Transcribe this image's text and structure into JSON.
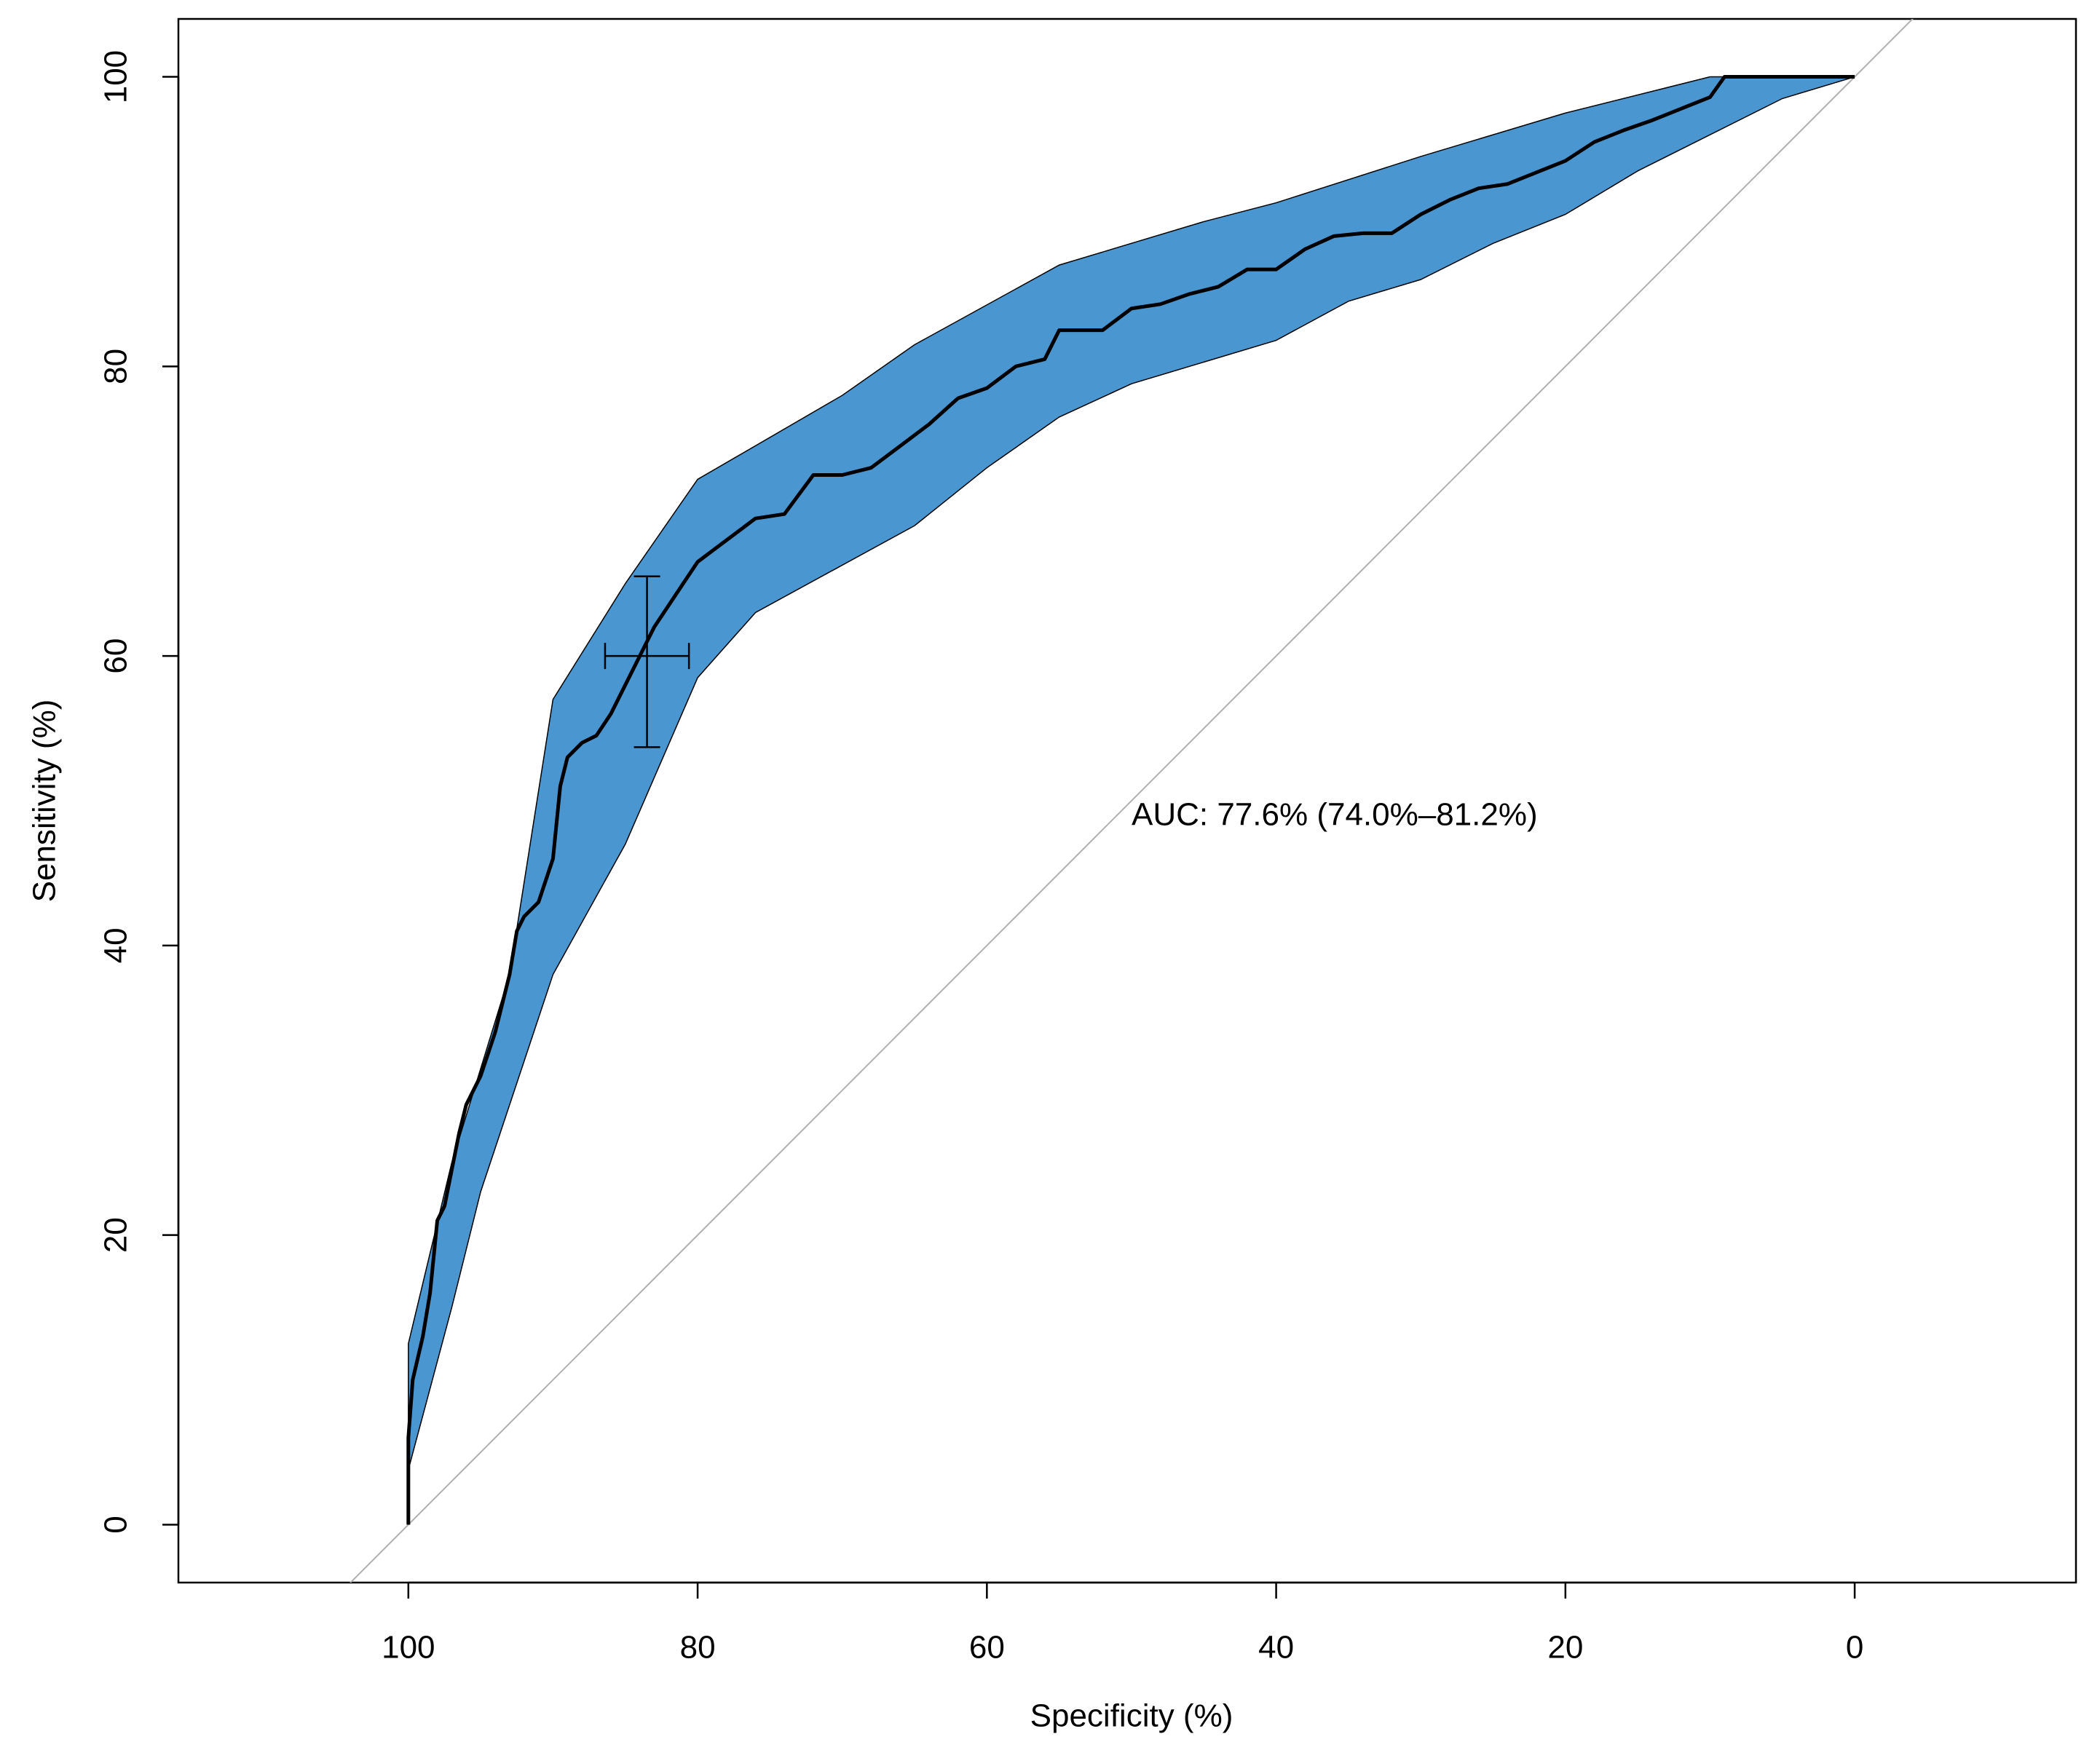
{
  "chart_data": {
    "type": "roc",
    "x_label": "Specificity (%)",
    "y_label": "Sensitivity (%)",
    "annotation": "AUC: 77.6% (74.0%–81.2%)",
    "xlim": [
      115.9,
      -15.3
    ],
    "ylim": [
      -4,
      104
    ],
    "xticks": [
      100,
      80,
      60,
      40,
      20,
      0
    ],
    "yticks": [
      0,
      20,
      40,
      60,
      80,
      100
    ],
    "reference_line": {
      "x": [
        100,
        0
      ],
      "y": [
        0,
        100
      ],
      "color": "#b0b0b0"
    },
    "curve": {
      "color": "#000000",
      "x": [
        100,
        100,
        100,
        99.7,
        99,
        98.5,
        98,
        97.5,
        96.5,
        96,
        95,
        94,
        93,
        92.5,
        92,
        91,
        90,
        89.5,
        89,
        88,
        87,
        86,
        85,
        84,
        83,
        82,
        81,
        80,
        78,
        76,
        74,
        72,
        70,
        68,
        66,
        64,
        62,
        60,
        58,
        56,
        55,
        52,
        50,
        48,
        46,
        44,
        42,
        40,
        38,
        36,
        34,
        32,
        30,
        28,
        26,
        24,
        22,
        20,
        18,
        16,
        14,
        12,
        10,
        9,
        5,
        3,
        0
      ],
      "y": [
        0,
        4,
        6,
        10,
        13,
        16,
        21,
        22,
        27,
        29,
        31,
        34,
        38,
        41,
        42,
        43,
        46,
        51,
        53,
        54,
        54.5,
        56,
        58,
        60,
        62,
        63.5,
        65,
        66.5,
        68,
        69.5,
        69.8,
        72.5,
        72.5,
        73,
        74.5,
        76,
        77.8,
        78.5,
        80,
        80.5,
        82.5,
        82.5,
        84,
        84.3,
        85,
        85.5,
        86.7,
        86.7,
        88.1,
        89,
        89.2,
        89.2,
        90.5,
        91.5,
        92.3,
        92.6,
        93.4,
        94.2,
        95.5,
        96.3,
        97,
        97.8,
        98.6,
        100,
        100,
        100,
        100
      ]
    },
    "ci_band": {
      "color": "#4a96d0",
      "upper": {
        "x": [
          100,
          97,
          93,
          90,
          85,
          80,
          70,
          65,
          55,
          45,
          40,
          30,
          25,
          20,
          10,
          0
        ],
        "y": [
          12.5,
          25,
          38,
          57,
          65,
          72.2,
          78,
          81.5,
          87,
          90,
          91.3,
          94.5,
          96,
          97.5,
          100,
          100
        ]
      },
      "lower": {
        "x": [
          100,
          97,
          95,
          90,
          85,
          80,
          76,
          65,
          60,
          55,
          50,
          40,
          35,
          30,
          25,
          20,
          15,
          5,
          0
        ],
        "y": [
          3.8,
          15,
          23,
          38,
          47,
          58.5,
          63,
          69,
          73,
          76.5,
          78.8,
          81.8,
          84.5,
          86,
          88.5,
          90.5,
          93.5,
          98.5,
          100
        ]
      }
    },
    "threshold_ci": {
      "x": 83.5,
      "y": 60,
      "x_range": [
        86.4,
        80.6
      ],
      "y_range": [
        53.7,
        65.5
      ]
    }
  }
}
